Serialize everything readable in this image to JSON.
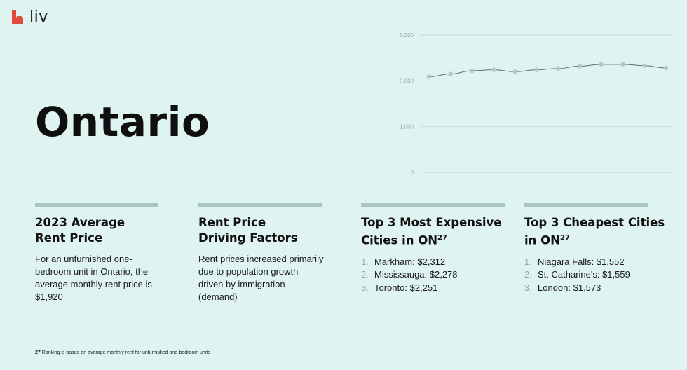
{
  "brand": {
    "logo_text": "liv",
    "accent": "#e04a3a"
  },
  "title": "Ontario",
  "chart_data": {
    "type": "line",
    "x": [
      "",
      "",
      "",
      "",
      "",
      "",
      "",
      "",
      "",
      "",
      "",
      ""
    ],
    "series": [
      {
        "values": [
          2090,
          2150,
          2220,
          2240,
          2200,
          2240,
          2270,
          2320,
          2360,
          2360,
          2330,
          2280
        ]
      }
    ],
    "yticks": [
      "3,000",
      "2,000",
      "1,000",
      "0"
    ],
    "ylim": [
      0,
      3000
    ],
    "grid": true,
    "line_color": "#5c6e69",
    "marker_color": "#b6c6c1"
  },
  "columns": [
    {
      "heading_line1": "2023 Average",
      "heading_line2": "Rent Price",
      "body": "For an unfurnished one-bedroom unit in Ontario, the average monthly rent price is $1,920"
    },
    {
      "heading_line1": "Rent Price",
      "heading_line2": "Driving Factors",
      "body": "Rent prices increased primarily due to population growth driven by immigration (demand)"
    },
    {
      "heading_line1": "Top 3 Most Expensive",
      "heading_line2": "Cities in ON",
      "sup": "27",
      "items": [
        "Markham: $2,312",
        "Mississauga: $2,278",
        "Toronto: $2,251"
      ]
    },
    {
      "heading_line1": "Top 3 Cheapest Cities",
      "heading_line2": "in ON",
      "sup": "27",
      "items": [
        "Niagara Falls: $1,552",
        "St. Catharine's: $1,559",
        "London: $1,573"
      ]
    }
  ],
  "footnote": {
    "number": "27",
    "text": "Ranking is based on average monthly rent for unfurnished one-bedroom units"
  }
}
